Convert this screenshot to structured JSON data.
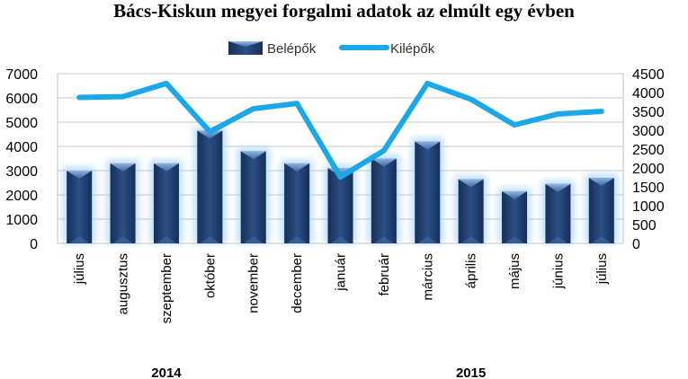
{
  "chart_data": {
    "type": "bar",
    "title": "Bács-Kiskun megyei forgalmi adatok az elmúlt egy évben",
    "categories": [
      "július",
      "augusztus",
      "szeptember",
      "október",
      "november",
      "december",
      "január",
      "február",
      "március",
      "április",
      "május",
      "június",
      "július"
    ],
    "years": [
      "2014",
      "2015"
    ],
    "series": [
      {
        "name": "Belépők",
        "type": "bar",
        "axis": "left",
        "color": "#1f3d6b",
        "values": [
          3000,
          3300,
          3300,
          4650,
          3800,
          3300,
          3100,
          3500,
          4200,
          2650,
          2150,
          2450,
          2700
        ]
      },
      {
        "name": "Kilépők",
        "type": "line",
        "axis": "right",
        "color": "#1aa8e6",
        "values": [
          3870,
          3890,
          4240,
          2960,
          3570,
          3710,
          1760,
          2460,
          4240,
          3820,
          3140,
          3430,
          3500
        ]
      }
    ],
    "y_left": {
      "ylim": [
        0,
        7000
      ],
      "ticks": [
        "0",
        "1000",
        "2000",
        "3000",
        "4000",
        "5000",
        "6000",
        "7000"
      ]
    },
    "y_right": {
      "ylim": [
        0,
        4500
      ],
      "ticks": [
        "0",
        "500",
        "1000",
        "1500",
        "2000",
        "2500",
        "3000",
        "3500",
        "4000",
        "4500"
      ]
    },
    "grid": true,
    "legend_position": "top"
  }
}
